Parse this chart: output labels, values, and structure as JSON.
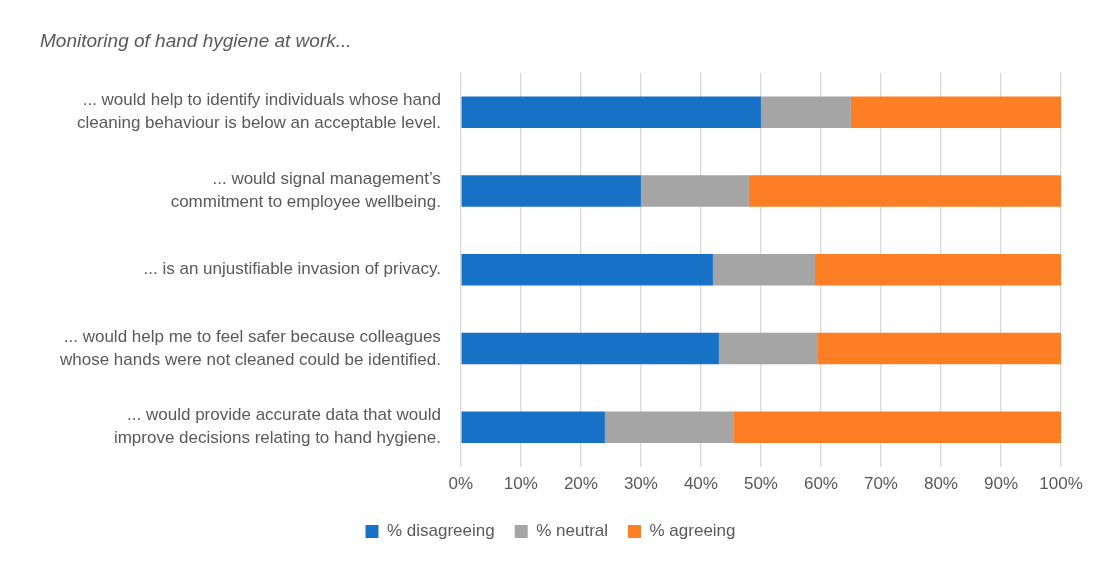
{
  "chart_data": {
    "type": "bar",
    "orientation": "horizontal",
    "stacked": true,
    "title": "Monitoring of hand hygiene at work...",
    "categories": [
      "... would help to identify individuals whose hand cleaning behaviour is below an acceptable level.",
      "... would signal management’s commitment to employee wellbeing.",
      "... is an unjustifiable invasion of privacy.",
      "... would help me to feel safer because colleagues whose hands were not cleaned could be identified.",
      "... would provide accurate data that would improve decisions relating to hand hygiene."
    ],
    "series": [
      {
        "name": "% disagreeing",
        "color": "#1772c6",
        "values": [
          50,
          30,
          42,
          43,
          24
        ]
      },
      {
        "name": "% neutral",
        "color": "#a5a5a5",
        "values": [
          15,
          18,
          17,
          16.5,
          21.5
        ]
      },
      {
        "name": "% agreeing",
        "color": "#fe7e25",
        "values": [
          35,
          52,
          41,
          40.5,
          54.5
        ]
      }
    ],
    "xlim": [
      0,
      100
    ],
    "xticks": [
      {
        "value": 0,
        "label": "0%"
      },
      {
        "value": 10,
        "label": "10%"
      },
      {
        "value": 20,
        "label": "20%"
      },
      {
        "value": 30,
        "label": "30%"
      },
      {
        "value": 40,
        "label": "40%"
      },
      {
        "value": 50,
        "label": "50%"
      },
      {
        "value": 60,
        "label": "60%"
      },
      {
        "value": 70,
        "label": "70%"
      },
      {
        "value": 80,
        "label": "80%"
      },
      {
        "value": 90,
        "label": "90%"
      },
      {
        "value": 100,
        "label": "100%"
      }
    ],
    "grid": "x",
    "legend": "bottom"
  }
}
